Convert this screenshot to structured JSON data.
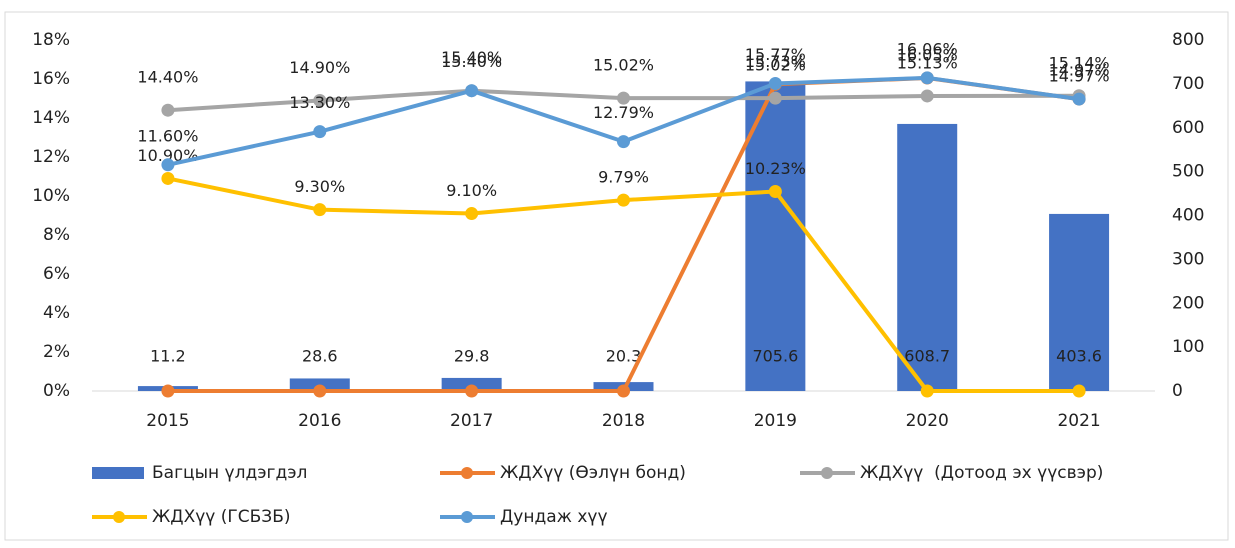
{
  "chart_data": {
    "type": "bar-line",
    "categories": [
      "2015",
      "2016",
      "2017",
      "2018",
      "2019",
      "2020",
      "2021"
    ],
    "ylim": [
      0,
      18
    ],
    "yticks": [
      {
        "value": 0,
        "label": "0%"
      },
      {
        "value": 2,
        "label": "2%"
      },
      {
        "value": 4,
        "label": "4%"
      },
      {
        "value": 6,
        "label": "6%"
      },
      {
        "value": 8,
        "label": "8%"
      },
      {
        "value": 10,
        "label": "10%"
      },
      {
        "value": 12,
        "label": "12%"
      },
      {
        "value": 14,
        "label": "14%"
      },
      {
        "value": 16,
        "label": "16%"
      },
      {
        "value": 18,
        "label": "18%"
      }
    ],
    "y2lim": [
      0,
      800
    ],
    "y2ticks": [
      0,
      100,
      200,
      300,
      400,
      500,
      600,
      700,
      800
    ],
    "series": [
      {
        "name": "Багцын үлдэгдэл",
        "type": "bar",
        "axis": "y2",
        "color": "#4472c4",
        "values": [
          11.2,
          28.6,
          29.8,
          20.3,
          705.6,
          608.7,
          403.6
        ]
      },
      {
        "name": "ЖДХүү (Өэлүн бонд)",
        "type": "line",
        "color": "#ed7d31",
        "values": [
          0,
          0,
          0,
          0,
          15.73,
          16.05,
          14.97
        ],
        "value_labels": [
          null,
          null,
          null,
          null,
          "15.73%",
          "16.05%",
          "14.97%"
        ]
      },
      {
        "name": "ЖДХүү  (Дотоод эх үүсвэр)",
        "type": "line",
        "color": "#a5a5a5",
        "values": [
          14.4,
          14.9,
          15.4,
          15.02,
          15.02,
          15.13,
          15.14
        ],
        "value_labels": [
          "14.40%",
          "14.90%",
          "15.40%",
          "15.02%",
          "15.02%",
          "15.13%",
          "15.14%"
        ]
      },
      {
        "name": "ЖДХүү (ГСБЗБ)",
        "type": "line",
        "color": "#ffc000",
        "values": [
          10.9,
          9.3,
          9.1,
          9.79,
          10.23,
          0,
          0
        ],
        "value_labels": [
          "10.90%",
          "9.30%",
          "9.10%",
          "9.79%",
          "10.23%",
          null,
          null
        ]
      },
      {
        "name": "Дундаж хүү",
        "type": "line",
        "color": "#5b9bd5",
        "values": [
          11.6,
          13.3,
          15.4,
          12.79,
          15.77,
          16.06,
          14.97
        ],
        "value_labels": [
          "11.60%",
          "13.30%",
          "15.40%",
          "12.79%",
          "15.77%",
          "16.06%",
          "14.97%"
        ]
      }
    ]
  }
}
